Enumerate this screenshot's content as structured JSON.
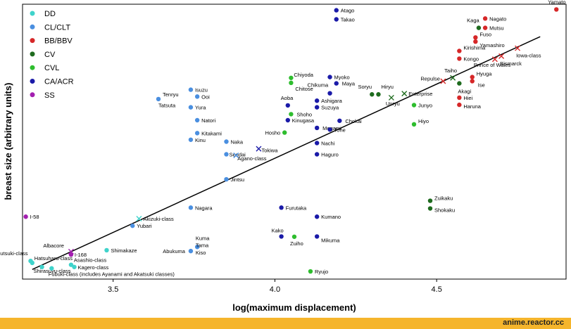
{
  "footer": {
    "site": "anime.reactor.cc"
  },
  "chart_data": {
    "type": "scatter",
    "xlabel": "log(maximum displacement)",
    "ylabel": "breast size (arbitrary units)",
    "xlim": [
      3.22,
      4.9
    ],
    "xticks": [
      3.5,
      4.0,
      4.5
    ],
    "xtick_labels": [
      "3.5",
      "4.0",
      "4.5"
    ],
    "ylim": [
      0,
      100
    ],
    "grid": false,
    "legend": {
      "placement": "top-left",
      "entries": [
        {
          "name": "DD",
          "color": "#3fd3cb"
        },
        {
          "name": "CL/CLT",
          "color": "#4a8fe0"
        },
        {
          "name": "BB/BBV",
          "color": "#d62728"
        },
        {
          "name": "CV",
          "color": "#1e6b1e"
        },
        {
          "name": "CVL",
          "color": "#2ebd2e"
        },
        {
          "name": "CA/ACR",
          "color": "#1a1aa8"
        },
        {
          "name": "SS",
          "color": "#a31fb0"
        }
      ]
    },
    "fit_line": {
      "x": [
        3.25,
        4.82
      ],
      "y": [
        3.5,
        88.2
      ]
    },
    "series": [
      {
        "name": "DD",
        "color": "#3fd3cb",
        "points": [
          {
            "x": 3.245,
            "y": 6.6,
            "label": "Mutsuki-class",
            "lx": -4,
            "ly": -8,
            "anchor": "end"
          },
          {
            "x": 3.25,
            "y": 5.9,
            "label": "Hatsuharu-class",
            "lx": 3,
            "ly": -4,
            "anchor": "start"
          },
          {
            "x": 3.28,
            "y": 4.4,
            "label": "Shirasuyu-class",
            "lx": -12,
            "ly": 8,
            "anchor": "start"
          },
          {
            "x": 3.31,
            "y": 3.9,
            "label": "",
            "lx": 0,
            "ly": 0,
            "anchor": "start"
          },
          {
            "x": 3.37,
            "y": 5.2,
            "label": "Asashio-class",
            "lx": 4,
            "ly": -4,
            "anchor": "start"
          },
          {
            "x": 3.38,
            "y": 4.4,
            "label": "Kagero-class",
            "lx": 5,
            "ly": 3,
            "anchor": "start"
          },
          {
            "x": 3.48,
            "y": 10.5,
            "label": "Shimakaze",
            "lx": 6,
            "ly": 3,
            "anchor": "start"
          }
        ]
      },
      {
        "name": "CL/CLT",
        "color": "#4a8fe0",
        "points": [
          {
            "x": 3.56,
            "y": 19.4,
            "label": "Yubari",
            "lx": 6,
            "ly": 3,
            "anchor": "start"
          },
          {
            "x": 3.74,
            "y": 10.2,
            "label": "Abukuma",
            "lx": -8,
            "ly": 3,
            "anchor": "end"
          },
          {
            "x": 3.76,
            "y": 11.7,
            "label": "",
            "lx": 0,
            "ly": 0,
            "anchor": "start"
          },
          {
            "x": 3.74,
            "y": 26.0,
            "label": "Nagara",
            "lx": 6,
            "ly": 3,
            "anchor": "start"
          },
          {
            "x": 3.85,
            "y": 36.3,
            "label": "Jintsu",
            "lx": 6,
            "ly": 3,
            "anchor": "start"
          },
          {
            "x": 3.85,
            "y": 45.4,
            "label": "Sendai",
            "lx": 4,
            "ly": 3,
            "anchor": "start"
          },
          {
            "x": 3.85,
            "y": 50.0,
            "label": "Naka",
            "lx": 6,
            "ly": 3,
            "anchor": "start"
          },
          {
            "x": 3.74,
            "y": 50.7,
            "label": "Kinu",
            "lx": 6,
            "ly": 3,
            "anchor": "start"
          },
          {
            "x": 3.76,
            "y": 53.1,
            "label": "Kitakami",
            "lx": 6,
            "ly": 3,
            "anchor": "start"
          },
          {
            "x": 3.76,
            "y": 57.8,
            "label": "Natori",
            "lx": 6,
            "ly": 3,
            "anchor": "start"
          },
          {
            "x": 3.74,
            "y": 62.5,
            "label": "Yura",
            "lx": 6,
            "ly": 3,
            "anchor": "start"
          },
          {
            "x": 3.76,
            "y": 66.4,
            "label": "Ooi",
            "lx": 6,
            "ly": 3,
            "anchor": "start"
          },
          {
            "x": 3.74,
            "y": 68.9,
            "label": "Isuzu",
            "lx": 6,
            "ly": 3,
            "anchor": "start"
          },
          {
            "x": 3.64,
            "y": 65.5,
            "label": "Tenryu",
            "lx": 6,
            "ly": -4,
            "anchor": "start"
          }
        ]
      },
      {
        "name": "BB/BBV",
        "color": "#d62728",
        "points": [
          {
            "x": 4.87,
            "y": 98.1,
            "label": "Yamato",
            "lx": -12,
            "ly": -8,
            "anchor": "start"
          },
          {
            "x": 4.65,
            "y": 94.8,
            "label": "Nagato",
            "lx": 6,
            "ly": 3,
            "anchor": "start"
          },
          {
            "x": 4.65,
            "y": 91.4,
            "label": "Mutsu",
            "lx": 6,
            "ly": 3,
            "anchor": "start"
          },
          {
            "x": 4.62,
            "y": 87.9,
            "label": "Fuso",
            "lx": 6,
            "ly": -2,
            "anchor": "start"
          },
          {
            "x": 4.62,
            "y": 86.4,
            "label": "Yamashiro",
            "lx": 6,
            "ly": 8,
            "anchor": "start"
          },
          {
            "x": 4.57,
            "y": 83.0,
            "label": "Kirishima",
            "lx": 6,
            "ly": -2,
            "anchor": "start"
          },
          {
            "x": 4.57,
            "y": 80.2,
            "label": "Kongo",
            "lx": 6,
            "ly": 3,
            "anchor": "start"
          },
          {
            "x": 4.61,
            "y": 73.5,
            "label": "Hyuga",
            "lx": 6,
            "ly": -2,
            "anchor": "start"
          },
          {
            "x": 4.61,
            "y": 72.0,
            "label": "Ise",
            "lx": 8,
            "ly": 8,
            "anchor": "start"
          },
          {
            "x": 4.57,
            "y": 66.0,
            "label": "Hiei",
            "lx": 6,
            "ly": 3,
            "anchor": "start"
          },
          {
            "x": 4.57,
            "y": 63.4,
            "label": "Haruna",
            "lx": 6,
            "ly": 5,
            "anchor": "start"
          }
        ]
      },
      {
        "name": "CV",
        "color": "#1e6b1e",
        "points": [
          {
            "x": 4.63,
            "y": 91.4,
            "label": "Kaga",
            "lx": -8,
            "ly": -8,
            "anchor": "middle"
          },
          {
            "x": 4.57,
            "y": 71.2,
            "label": "Akagi",
            "lx": -2,
            "ly": 14,
            "anchor": "start"
          },
          {
            "x": 4.3,
            "y": 67.2,
            "label": "Soryu",
            "lx": -10,
            "ly": -8,
            "anchor": "middle"
          },
          {
            "x": 4.32,
            "y": 67.2,
            "label": "Hiryu",
            "lx": 4,
            "ly": -8,
            "anchor": "start"
          },
          {
            "x": 4.48,
            "y": 28.5,
            "label": "Zuikaku",
            "lx": 6,
            "ly": -1,
            "anchor": "start"
          },
          {
            "x": 4.48,
            "y": 25.7,
            "label": "Shokaku",
            "lx": 6,
            "ly": 5,
            "anchor": "start"
          }
        ]
      },
      {
        "name": "CVL",
        "color": "#2ebd2e",
        "points": [
          {
            "x": 4.05,
            "y": 73.2,
            "label": "Chiyoda",
            "lx": 4,
            "ly": -2,
            "anchor": "start"
          },
          {
            "x": 4.05,
            "y": 71.4,
            "label": "Chitose",
            "lx": 6,
            "ly": 11,
            "anchor": "start"
          },
          {
            "x": 4.05,
            "y": 60.0,
            "label": "Shoho",
            "lx": 8,
            "ly": 3,
            "anchor": "start"
          },
          {
            "x": 4.03,
            "y": 53.3,
            "label": "Hosho",
            "lx": -6,
            "ly": 3,
            "anchor": "end"
          },
          {
            "x": 4.43,
            "y": 63.3,
            "label": "Junyo",
            "lx": 6,
            "ly": 3,
            "anchor": "start"
          },
          {
            "x": 4.43,
            "y": 56.3,
            "label": "Hiyo",
            "lx": 6,
            "ly": -2,
            "anchor": "start"
          },
          {
            "x": 4.06,
            "y": 15.4,
            "label": "Zuiho",
            "lx": -6,
            "ly": 12,
            "anchor": "start"
          },
          {
            "x": 4.11,
            "y": 2.8,
            "label": "Ryujo",
            "lx": 6,
            "ly": 3,
            "anchor": "start"
          }
        ]
      },
      {
        "name": "CA/ACR",
        "color": "#1a1aa8",
        "points": [
          {
            "x": 4.19,
            "y": 97.8,
            "label": "Atago",
            "lx": 6,
            "ly": 3,
            "anchor": "start"
          },
          {
            "x": 4.19,
            "y": 94.5,
            "label": "Takao",
            "lx": 6,
            "ly": 3,
            "anchor": "start"
          },
          {
            "x": 4.17,
            "y": 73.5,
            "label": "Myoko",
            "lx": 6,
            "ly": 3,
            "anchor": "start"
          },
          {
            "x": 4.19,
            "y": 71.2,
            "label": "Maya",
            "lx": 8,
            "ly": 3,
            "anchor": "start"
          },
          {
            "x": 4.17,
            "y": 67.6,
            "label": "Chikuma",
            "lx": -32,
            "ly": -9,
            "anchor": "start"
          },
          {
            "x": 4.13,
            "y": 64.9,
            "label": "Ashigara",
            "lx": 6,
            "ly": 3,
            "anchor": "start"
          },
          {
            "x": 4.13,
            "y": 62.5,
            "label": "Suzuya",
            "lx": 6,
            "ly": 3,
            "anchor": "start"
          },
          {
            "x": 4.04,
            "y": 63.2,
            "label": "Aoba",
            "lx": -10,
            "ly": -8,
            "anchor": "start"
          },
          {
            "x": 4.04,
            "y": 57.8,
            "label": "Kinugasa",
            "lx": 6,
            "ly": 3,
            "anchor": "start"
          },
          {
            "x": 4.13,
            "y": 55.0,
            "label": "Mogami",
            "lx": 8,
            "ly": 3,
            "anchor": "start"
          },
          {
            "x": 4.17,
            "y": 54.4,
            "label": "Tone",
            "lx": 6,
            "ly": 3,
            "anchor": "start"
          },
          {
            "x": 4.2,
            "y": 57.6,
            "label": "Chokai",
            "lx": 8,
            "ly": 3,
            "anchor": "start"
          },
          {
            "x": 4.13,
            "y": 49.5,
            "label": "Nachi",
            "lx": 6,
            "ly": 3,
            "anchor": "start"
          },
          {
            "x": 4.13,
            "y": 45.4,
            "label": "Haguro",
            "lx": 6,
            "ly": 3,
            "anchor": "start"
          },
          {
            "x": 4.02,
            "y": 26.0,
            "label": "Furutaka",
            "lx": 6,
            "ly": 3,
            "anchor": "start"
          },
          {
            "x": 4.13,
            "y": 22.7,
            "label": "Kumano",
            "lx": 6,
            "ly": 3,
            "anchor": "start"
          },
          {
            "x": 4.02,
            "y": 15.5,
            "label": "Kako",
            "lx": -14,
            "ly": -6,
            "anchor": "start"
          },
          {
            "x": 4.13,
            "y": 15.5,
            "label": "Mikuma",
            "lx": 6,
            "ly": 8,
            "anchor": "start"
          }
        ]
      },
      {
        "name": "SS",
        "color": "#a31fb0",
        "points": [
          {
            "x": 3.23,
            "y": 22.7,
            "label": "I-58",
            "lx": 6,
            "ly": 3,
            "anchor": "start"
          },
          {
            "x": 3.37,
            "y": 8.9,
            "label": "I-168",
            "lx": 5,
            "ly": 3,
            "anchor": "start"
          }
        ]
      }
    ],
    "cross_markers": [
      {
        "x": 4.75,
        "y": 84.0,
        "color": "#d62728",
        "label": "Iowa-class",
        "lx": -2,
        "ly": 13,
        "anchor": "start"
      },
      {
        "x": 4.7,
        "y": 81.1,
        "color": "#d62728",
        "label": "Bismarck",
        "lx": -2,
        "ly": 13,
        "anchor": "start"
      },
      {
        "x": 4.68,
        "y": 80.0,
        "color": "#d62728",
        "label": "Prince of Wales",
        "lx": -30,
        "ly": 11,
        "anchor": "start"
      },
      {
        "x": 4.52,
        "y": 72.0,
        "color": "#d62728",
        "label": "Repulse",
        "lx": -32,
        "ly": -1,
        "anchor": "start"
      },
      {
        "x": 4.55,
        "y": 73.2,
        "color": "#1e6b1e",
        "label": "Taiho",
        "lx": -12,
        "ly": -8,
        "anchor": "start"
      },
      {
        "x": 4.4,
        "y": 67.5,
        "color": "#1e6b1e",
        "label": "Enterprise",
        "lx": 6,
        "ly": 3,
        "anchor": "start"
      },
      {
        "x": 4.36,
        "y": 66.0,
        "color": "#1e6b1e",
        "label": "Unryu",
        "lx": -8,
        "ly": 11,
        "anchor": "start"
      },
      {
        "x": 3.95,
        "y": 47.4,
        "color": "#1a1aa8",
        "label": "Tokiwa",
        "lx": 4,
        "ly": 5,
        "anchor": "start"
      },
      {
        "x": 3.88,
        "y": 45.0,
        "color": "#4a8fe0",
        "label": "Agano-class",
        "lx": 2,
        "ly": 7,
        "anchor": "start"
      },
      {
        "x": 3.58,
        "y": 22.0,
        "color": "#3fd3cb",
        "label": "Akizuki-class",
        "lx": 6,
        "ly": 3,
        "anchor": "start"
      },
      {
        "x": 3.37,
        "y": 10.0,
        "color": "#a31fb0",
        "label": "Albacore",
        "lx": -10,
        "ly": -6,
        "anchor": "end"
      }
    ],
    "annotations": [
      {
        "text": "Tatsuta",
        "x": 3.64,
        "y": 62.5,
        "anchor": "start"
      },
      {
        "text": "Kuma",
        "x": 3.755,
        "y": 14.2,
        "anchor": "start"
      },
      {
        "text": "Tama",
        "x": 3.755,
        "y": 11.6,
        "anchor": "start"
      },
      {
        "text": "Kiso",
        "x": 3.755,
        "y": 8.9,
        "anchor": "start"
      },
      {
        "text": "Fubuki-class (includes Ayanami and Akatsuki classes)",
        "x": 3.3,
        "y": 1.1,
        "anchor": "start"
      }
    ]
  }
}
